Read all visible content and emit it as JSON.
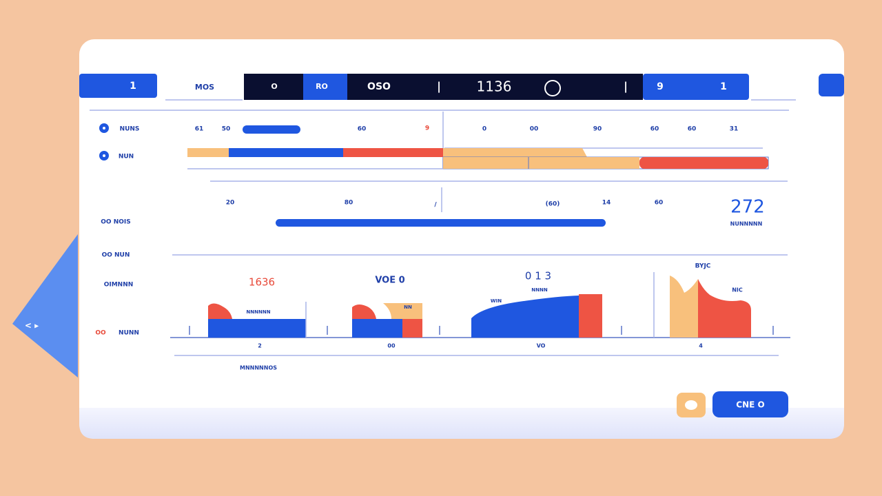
{
  "top_bar": {
    "left_button": "1",
    "tab": "MOS",
    "segments": [
      "O",
      "RO",
      "OSO",
      "|",
      "1136",
      "|"
    ],
    "right_segments": [
      "9",
      "1"
    ]
  },
  "row_labels": [
    "NUNS",
    "NUN",
    "OO NOIS",
    "OO NUN",
    "OIMNNN",
    "OO",
    "NUNN"
  ],
  "row_one": [
    "61",
    "50",
    "60",
    "9",
    "0",
    "00",
    "90",
    "60",
    "60",
    "31"
  ],
  "row_two": [
    "20",
    "80",
    "/",
    "(60)",
    "14",
    "60"
  ],
  "summary": {
    "value": "272",
    "caption": "NUNNNNN"
  },
  "chart": {
    "headers": [
      "1636",
      "VOE 0",
      "0 1 3",
      "BYJC"
    ],
    "inner_labels": [
      "NNNNNN",
      "NN",
      "NNNN",
      "WIN",
      "NIC"
    ],
    "axis_labels": [
      "2",
      "00",
      "VO",
      "4"
    ],
    "footer": "MNNNNNOS"
  },
  "side_tab": "< ▸",
  "button": "CNE O"
}
